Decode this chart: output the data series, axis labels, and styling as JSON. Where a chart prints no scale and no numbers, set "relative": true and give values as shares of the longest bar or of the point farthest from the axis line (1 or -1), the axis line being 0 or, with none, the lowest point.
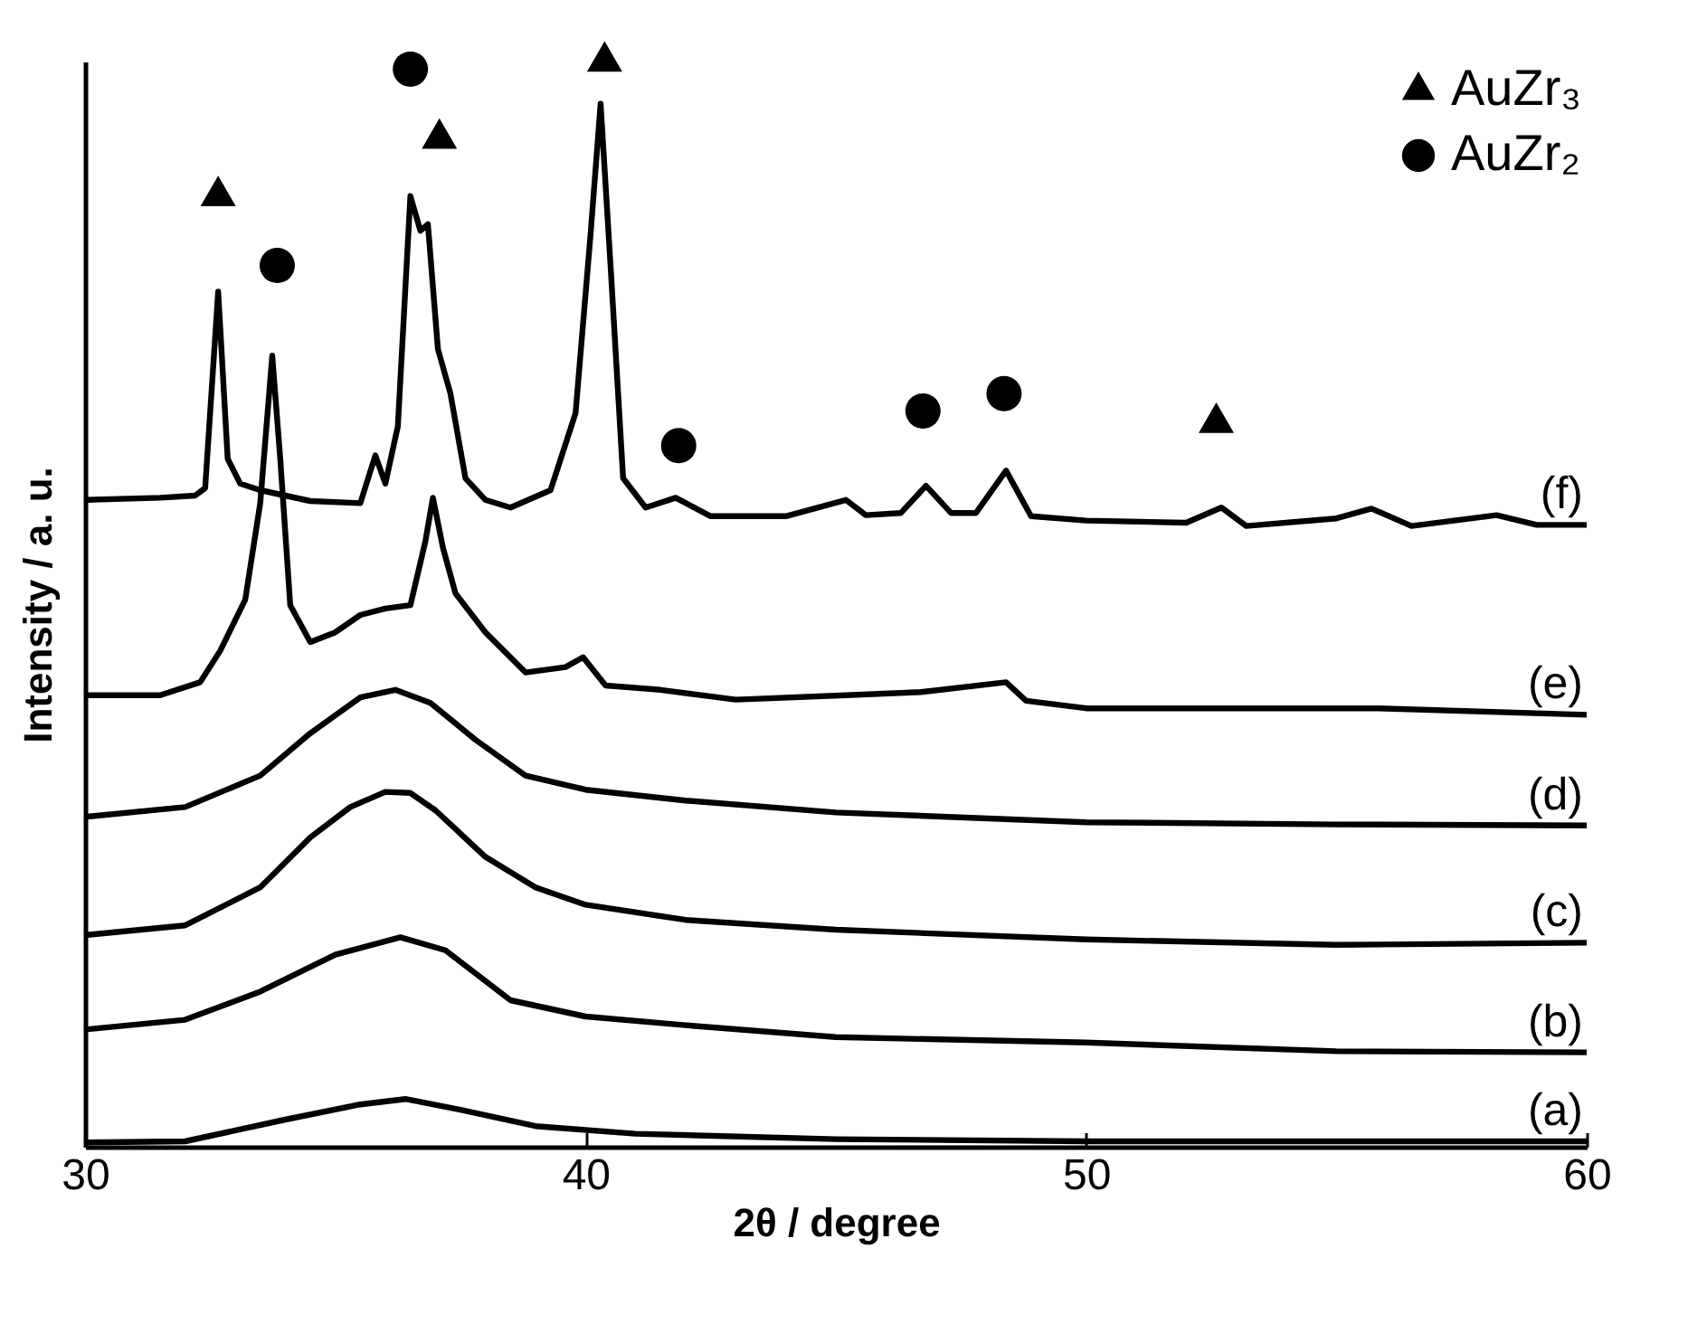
{
  "chart_data": {
    "type": "line",
    "xlabel": "2θ / degree",
    "ylabel": "Intensity / a. u.",
    "relative": true,
    "xlim": [
      30,
      60
    ],
    "xticks": [
      30,
      40,
      50,
      60
    ],
    "grid": false,
    "legend": "top right",
    "marker": "none",
    "line_style": "solid",
    "series": [
      {
        "name": "(a)",
        "color": "#000000",
        "x": [
          30,
          32,
          34,
          35.5,
          36.4,
          37.5,
          39,
          41,
          45,
          50,
          60
        ],
        "values": [
          0.004,
          0.005,
          0.025,
          0.039,
          0.044,
          0.034,
          0.019,
          0.012,
          0.007,
          0.005,
          0.005
        ]
      },
      {
        "name": "(b)",
        "color": "#000000",
        "x": [
          30,
          32,
          33.5,
          35,
          36.3,
          37.2,
          38.5,
          40,
          42,
          45,
          50,
          55,
          60
        ],
        "values": [
          0.108,
          0.117,
          0.143,
          0.177,
          0.193,
          0.181,
          0.135,
          0.12,
          0.112,
          0.101,
          0.096,
          0.088,
          0.087
        ]
      },
      {
        "name": "(c)",
        "color": "#000000",
        "x": [
          30,
          32,
          33.5,
          34.5,
          35.3,
          36,
          36.5,
          37,
          38,
          39,
          40,
          42,
          45,
          50,
          55,
          60
        ],
        "values": [
          0.195,
          0.204,
          0.239,
          0.285,
          0.313,
          0.327,
          0.326,
          0.31,
          0.267,
          0.239,
          0.223,
          0.209,
          0.2,
          0.191,
          0.186,
          0.188
        ]
      },
      {
        "name": "(d)",
        "color": "#000000",
        "x": [
          30,
          32,
          33.5,
          34.5,
          35.5,
          36.2,
          36.9,
          37.8,
          38.8,
          40,
          42,
          45,
          50,
          55,
          60
        ],
        "values": [
          0.304,
          0.313,
          0.342,
          0.381,
          0.414,
          0.421,
          0.409,
          0.375,
          0.342,
          0.329,
          0.319,
          0.308,
          0.299,
          0.297,
          0.296
        ]
      },
      {
        "name": "(e)",
        "color": "#000000",
        "x": [
          30,
          31.5,
          32.3,
          32.7,
          33.2,
          33.5,
          33.74,
          33.9,
          34.1,
          34.5,
          35,
          35.5,
          36,
          36.5,
          36.8,
          36.95,
          37.15,
          37.4,
          38,
          38.8,
          39.6,
          39.95,
          40.4,
          41.5,
          43,
          45.2,
          46.7,
          48.4,
          48.8,
          50,
          55.8,
          60
        ],
        "values": [
          0.416,
          0.416,
          0.428,
          0.457,
          0.504,
          0.593,
          0.729,
          0.634,
          0.499,
          0.465,
          0.474,
          0.49,
          0.496,
          0.499,
          0.558,
          0.598,
          0.552,
          0.51,
          0.474,
          0.437,
          0.442,
          0.451,
          0.425,
          0.421,
          0.412,
          0.416,
          0.419,
          0.428,
          0.411,
          0.404,
          0.404,
          0.398
        ]
      },
      {
        "name": "(f)",
        "color": "#000000",
        "x": [
          30,
          31.5,
          32.2,
          32.4,
          32.66,
          32.85,
          33.1,
          33.5,
          34.5,
          35.5,
          35.8,
          36,
          36.25,
          36.5,
          36.7,
          36.85,
          37.05,
          37.3,
          37.6,
          38,
          38.5,
          39.3,
          39.8,
          40.1,
          40.3,
          40.5,
          40.75,
          41.2,
          41.8,
          42.5,
          44,
          45.2,
          45.6,
          46.3,
          46.8,
          47.3,
          47.8,
          48.4,
          48.9,
          50,
          52,
          52.7,
          53.2,
          55,
          55.7,
          56.5,
          58.2,
          59,
          60
        ],
        "values": [
          0.596,
          0.598,
          0.6,
          0.607,
          0.788,
          0.634,
          0.611,
          0.605,
          0.595,
          0.593,
          0.637,
          0.611,
          0.664,
          0.876,
          0.844,
          0.85,
          0.735,
          0.694,
          0.616,
          0.596,
          0.589,
          0.605,
          0.676,
          0.841,
          0.961,
          0.811,
          0.616,
          0.589,
          0.598,
          0.581,
          0.581,
          0.596,
          0.582,
          0.584,
          0.609,
          0.584,
          0.584,
          0.623,
          0.581,
          0.577,
          0.575,
          0.589,
          0.572,
          0.579,
          0.588,
          0.572,
          0.582,
          0.573,
          0.573
        ]
      },
      {
        "name": "AuZr₃",
        "type": "scatter",
        "marker": "triangle",
        "color": "#000000",
        "x": [
          32.66,
          37.08,
          40.38,
          52.6
        ],
        "values": [
          0.876,
          0.929,
          1.0,
          0.667
        ]
      },
      {
        "name": "AuZr₂",
        "type": "scatter",
        "marker": "circle",
        "color": "#000000",
        "x": [
          33.84,
          36.5,
          41.86,
          46.74,
          48.36
        ],
        "values": [
          0.812,
          0.993,
          0.646,
          0.678,
          0.694
        ]
      }
    ]
  }
}
